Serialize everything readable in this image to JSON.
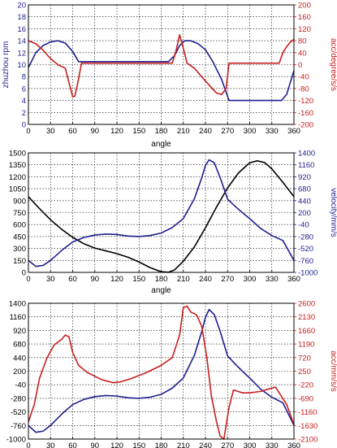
{
  "chart_data": [
    {
      "type": "line",
      "xlabel": "angle",
      "ylabel_left": "zhuzhou rpm",
      "ylabel_right": "acc/degree/s/s",
      "xlim": [
        0,
        360
      ],
      "ylim_left": [
        0,
        20
      ],
      "ylim_right": [
        -200,
        200
      ],
      "x_ticks": [
        0,
        30,
        60,
        90,
        120,
        150,
        180,
        210,
        240,
        270,
        300,
        330,
        360
      ],
      "y_ticks_left": [
        0,
        2,
        4,
        6,
        8,
        10,
        12,
        14,
        16,
        18,
        20
      ],
      "y_ticks_right": [
        -200,
        -160,
        -120,
        -80,
        -40,
        0,
        40,
        80,
        120,
        160,
        200
      ],
      "grid": true,
      "colors": {
        "left_axis": "#1f1f8f",
        "right_axis": "#c81e1e"
      },
      "series": [
        {
          "axis": "left",
          "color": "#1f1f8f",
          "points": [
            [
              0,
              9.5
            ],
            [
              10,
              12
            ],
            [
              20,
              13.2
            ],
            [
              30,
              13.8
            ],
            [
              40,
              14
            ],
            [
              50,
              13.6
            ],
            [
              60,
              12.2
            ],
            [
              68,
              10.5
            ],
            [
              80,
              10.5
            ],
            [
              120,
              10.5
            ],
            [
              160,
              10.5
            ],
            [
              190,
              10.5
            ],
            [
              198,
              11.5
            ],
            [
              205,
              13.2
            ],
            [
              212,
              14
            ],
            [
              220,
              14
            ],
            [
              230,
              13.5
            ],
            [
              240,
              12.5
            ],
            [
              250,
              10.5
            ],
            [
              262,
              7.5
            ],
            [
              272,
              4
            ],
            [
              290,
              4
            ],
            [
              320,
              4
            ],
            [
              343,
              4
            ],
            [
              350,
              5
            ],
            [
              355,
              7
            ],
            [
              360,
              9
            ]
          ]
        },
        {
          "axis": "right",
          "color": "#c81e1e",
          "points": [
            [
              0,
              80
            ],
            [
              10,
              70
            ],
            [
              20,
              48
            ],
            [
              30,
              20
            ],
            [
              40,
              0
            ],
            [
              50,
              -12
            ],
            [
              55,
              -60
            ],
            [
              60,
              -108
            ],
            [
              63,
              -105
            ],
            [
              67,
              -60
            ],
            [
              72,
              5
            ],
            [
              90,
              5
            ],
            [
              130,
              5
            ],
            [
              170,
              5
            ],
            [
              195,
              5
            ],
            [
              200,
              45
            ],
            [
              205,
              100
            ],
            [
              210,
              55
            ],
            [
              215,
              5
            ],
            [
              225,
              -12
            ],
            [
              240,
              -55
            ],
            [
              255,
              -95
            ],
            [
              262,
              -100
            ],
            [
              268,
              -80
            ],
            [
              272,
              5
            ],
            [
              300,
              5
            ],
            [
              340,
              5
            ],
            [
              345,
              40
            ],
            [
              350,
              60
            ],
            [
              355,
              75
            ],
            [
              360,
              85
            ]
          ]
        }
      ]
    },
    {
      "type": "line",
      "xlabel": "angle",
      "ylabel_left": "",
      "ylabel_right": "velocity/mm/s",
      "xlim": [
        0,
        360
      ],
      "ylim_left": [
        0,
        1500
      ],
      "ylim_right": [
        -1000,
        1400
      ],
      "x_ticks": [
        0,
        30,
        60,
        90,
        120,
        150,
        180,
        210,
        240,
        270,
        300,
        330,
        360
      ],
      "y_ticks_left": [
        0,
        150,
        300,
        450,
        600,
        750,
        900,
        1050,
        1200,
        1350,
        1500
      ],
      "y_ticks_right": [
        -1000,
        -760,
        -520,
        -280,
        -40,
        200,
        440,
        680,
        920,
        1160,
        1400
      ],
      "grid": true,
      "colors": {
        "black": "#000000",
        "blue": "#1f1f8f"
      },
      "series": [
        {
          "axis": "left",
          "color": "#000000",
          "points": [
            [
              0,
              950
            ],
            [
              15,
              800
            ],
            [
              30,
              660
            ],
            [
              45,
              540
            ],
            [
              60,
              440
            ],
            [
              75,
              360
            ],
            [
              90,
              305
            ],
            [
              105,
              270
            ],
            [
              120,
              235
            ],
            [
              135,
              190
            ],
            [
              150,
              130
            ],
            [
              165,
              60
            ],
            [
              180,
              8
            ],
            [
              190,
              2
            ],
            [
              198,
              30
            ],
            [
              210,
              140
            ],
            [
              225,
              320
            ],
            [
              240,
              560
            ],
            [
              255,
              820
            ],
            [
              270,
              1060
            ],
            [
              285,
              1250
            ],
            [
              300,
              1375
            ],
            [
              310,
              1400
            ],
            [
              320,
              1380
            ],
            [
              330,
              1300
            ],
            [
              345,
              1130
            ],
            [
              360,
              950
            ]
          ]
        },
        {
          "axis": "right",
          "color": "#1f1f8f",
          "points": [
            [
              0,
              -760
            ],
            [
              10,
              -880
            ],
            [
              20,
              -860
            ],
            [
              30,
              -760
            ],
            [
              45,
              -560
            ],
            [
              60,
              -390
            ],
            [
              75,
              -300
            ],
            [
              90,
              -250
            ],
            [
              105,
              -230
            ],
            [
              120,
              -240
            ],
            [
              135,
              -270
            ],
            [
              150,
              -280
            ],
            [
              165,
              -260
            ],
            [
              180,
              -210
            ],
            [
              195,
              -100
            ],
            [
              210,
              80
            ],
            [
              225,
              480
            ],
            [
              235,
              900
            ],
            [
              240,
              1150
            ],
            [
              245,
              1260
            ],
            [
              252,
              1200
            ],
            [
              260,
              900
            ],
            [
              270,
              470
            ],
            [
              280,
              330
            ],
            [
              290,
              200
            ],
            [
              300,
              80
            ],
            [
              315,
              -120
            ],
            [
              330,
              -260
            ],
            [
              345,
              -360
            ],
            [
              360,
              -760
            ]
          ]
        }
      ]
    },
    {
      "type": "line",
      "xlabel": "",
      "ylabel_left": "",
      "ylabel_right": "acc/mm/s/s",
      "xlim": [
        0,
        360
      ],
      "ylim_left": [
        -1000,
        1400
      ],
      "ylim_right": [
        -2100,
        2600
      ],
      "x_ticks": [
        0,
        30,
        60,
        90,
        120,
        150,
        180,
        210,
        240,
        270,
        300,
        330,
        360
      ],
      "y_ticks_left": [
        -1000,
        -760,
        -520,
        -280,
        -40,
        200,
        440,
        680,
        920,
        1160,
        1400
      ],
      "y_ticks_right": [
        -2100,
        -1630,
        -1160,
        -690,
        -220,
        250,
        720,
        1190,
        1660,
        2130,
        2600
      ],
      "grid": true,
      "colors": {
        "blue": "#1f1f8f",
        "red": "#c81e1e"
      },
      "series": [
        {
          "axis": "left",
          "color": "#1f1f8f",
          "points": [
            [
              0,
              -760
            ],
            [
              10,
              -880
            ],
            [
              20,
              -860
            ],
            [
              30,
              -760
            ],
            [
              45,
              -560
            ],
            [
              60,
              -390
            ],
            [
              75,
              -300
            ],
            [
              90,
              -250
            ],
            [
              105,
              -230
            ],
            [
              120,
              -240
            ],
            [
              135,
              -270
            ],
            [
              150,
              -280
            ],
            [
              165,
              -260
            ],
            [
              180,
              -210
            ],
            [
              195,
              -100
            ],
            [
              210,
              80
            ],
            [
              225,
              480
            ],
            [
              235,
              900
            ],
            [
              240,
              1150
            ],
            [
              245,
              1290
            ],
            [
              252,
              1200
            ],
            [
              260,
              900
            ],
            [
              270,
              470
            ],
            [
              280,
              330
            ],
            [
              290,
              200
            ],
            [
              300,
              80
            ],
            [
              315,
              -120
            ],
            [
              330,
              -260
            ],
            [
              345,
              -360
            ],
            [
              360,
              -760
            ]
          ]
        },
        {
          "axis": "right",
          "color": "#c81e1e",
          "points": [
            [
              0,
              -1500
            ],
            [
              8,
              -900
            ],
            [
              15,
              0
            ],
            [
              25,
              700
            ],
            [
              35,
              1160
            ],
            [
              45,
              1350
            ],
            [
              50,
              1500
            ],
            [
              55,
              1440
            ],
            [
              60,
              900
            ],
            [
              68,
              450
            ],
            [
              80,
              200
            ],
            [
              100,
              -50
            ],
            [
              115,
              -150
            ],
            [
              125,
              -120
            ],
            [
              140,
              0
            ],
            [
              160,
              200
            ],
            [
              180,
              450
            ],
            [
              195,
              720
            ],
            [
              205,
              1500
            ],
            [
              210,
              2450
            ],
            [
              215,
              2500
            ],
            [
              220,
              2300
            ],
            [
              228,
              2200
            ],
            [
              235,
              1800
            ],
            [
              242,
              700
            ],
            [
              248,
              -600
            ],
            [
              255,
              -1500
            ],
            [
              260,
              -2000
            ],
            [
              265,
              -2100
            ],
            [
              272,
              -1000
            ],
            [
              278,
              -400
            ],
            [
              290,
              -500
            ],
            [
              300,
              -500
            ],
            [
              315,
              -450
            ],
            [
              328,
              -350
            ],
            [
              335,
              -300
            ],
            [
              340,
              -500
            ],
            [
              350,
              -900
            ],
            [
              360,
              -1600
            ]
          ]
        }
      ]
    }
  ]
}
